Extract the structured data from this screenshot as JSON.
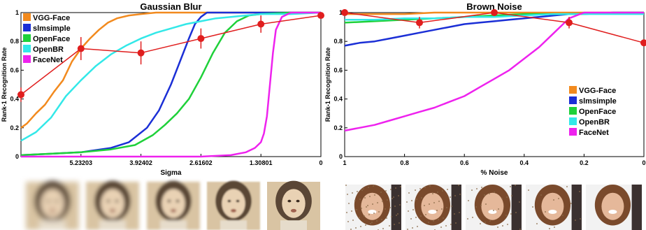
{
  "chart_data": [
    {
      "type": "line",
      "title": "Gaussian Blur",
      "xlabel": "Sigma",
      "ylabel": "Rank-1 Recognition Rate",
      "xlim": [
        0,
        1
      ],
      "ylim": [
        0,
        1
      ],
      "x_reversed": true,
      "xticks": [
        {
          "v": 0.2,
          "label": "5.23203"
        },
        {
          "v": 0.4,
          "label": "3.92402"
        },
        {
          "v": 0.6,
          "label": "2.61602"
        },
        {
          "v": 0.8,
          "label": "1.30801"
        },
        {
          "v": 1.0,
          "label": "0"
        }
      ],
      "yticks": [
        0,
        0.2,
        0.4,
        0.6,
        0.8,
        1
      ],
      "legend_position": "top-left",
      "series": [
        {
          "name": "VGG-Face",
          "color": "#f28a1e",
          "x": [
            0,
            0.02,
            0.05,
            0.08,
            0.11,
            0.14,
            0.17,
            0.2,
            0.23,
            0.26,
            0.29,
            0.32,
            0.36,
            0.4,
            0.45,
            0.5,
            0.6,
            0.8,
            1.0
          ],
          "y": [
            0.2,
            0.23,
            0.3,
            0.36,
            0.45,
            0.53,
            0.66,
            0.75,
            0.82,
            0.88,
            0.93,
            0.96,
            0.98,
            0.99,
            1,
            1,
            1,
            1,
            1
          ]
        },
        {
          "name": "slmsimple",
          "color": "#1b2fd6",
          "x": [
            0,
            0.1,
            0.2,
            0.3,
            0.36,
            0.42,
            0.46,
            0.5,
            0.53,
            0.56,
            0.58,
            0.6,
            0.62,
            0.65,
            0.8,
            1.0
          ],
          "y": [
            0.01,
            0.02,
            0.03,
            0.06,
            0.1,
            0.2,
            0.32,
            0.5,
            0.66,
            0.82,
            0.92,
            0.97,
            1,
            1,
            1,
            1
          ]
        },
        {
          "name": "OpenFace",
          "color": "#1fd13a",
          "x": [
            0,
            0.1,
            0.2,
            0.3,
            0.38,
            0.44,
            0.48,
            0.52,
            0.56,
            0.6,
            0.64,
            0.68,
            0.72,
            0.76,
            0.8,
            0.9,
            1.0
          ],
          "y": [
            0.01,
            0.02,
            0.03,
            0.05,
            0.08,
            0.15,
            0.22,
            0.3,
            0.4,
            0.55,
            0.72,
            0.86,
            0.94,
            0.98,
            0.99,
            1,
            1
          ]
        },
        {
          "name": "OpenBR",
          "color": "#33e8e8",
          "x": [
            0,
            0.05,
            0.1,
            0.15,
            0.2,
            0.25,
            0.3,
            0.35,
            0.4,
            0.45,
            0.5,
            0.55,
            0.6,
            0.65,
            0.7,
            0.75,
            0.8,
            0.9,
            1.0
          ],
          "y": [
            0.11,
            0.17,
            0.27,
            0.42,
            0.53,
            0.63,
            0.71,
            0.77,
            0.82,
            0.86,
            0.89,
            0.92,
            0.94,
            0.96,
            0.97,
            0.98,
            0.99,
            0.99,
            1
          ]
        },
        {
          "name": "FaceNet",
          "color": "#ee22ee",
          "x": [
            0,
            0.2,
            0.4,
            0.6,
            0.7,
            0.75,
            0.78,
            0.8,
            0.81,
            0.82,
            0.83,
            0.84,
            0.85,
            0.87,
            0.9,
            1.0
          ],
          "y": [
            0,
            0,
            0,
            0,
            0.01,
            0.03,
            0.06,
            0.1,
            0.16,
            0.28,
            0.5,
            0.72,
            0.88,
            0.97,
            1,
            1
          ]
        },
        {
          "name": "",
          "color": "#e01e1e",
          "markers": true,
          "errorbars": true,
          "x": [
            0,
            0.2,
            0.4,
            0.6,
            0.8,
            1.0
          ],
          "y": [
            0.43,
            0.75,
            0.72,
            0.82,
            0.92,
            0.98
          ],
          "err": [
            0.05,
            0.08,
            0.08,
            0.07,
            0.06,
            0.02
          ]
        }
      ]
    },
    {
      "type": "line",
      "title": "Brown Noise",
      "xlabel": "% Noise",
      "ylabel": "Rank-1 Recognition Rate",
      "xlim": [
        1,
        0
      ],
      "ylim": [
        0,
        1
      ],
      "x_reversed": true,
      "xticks": [
        {
          "v": 1,
          "label": "1"
        },
        {
          "v": 0.8,
          "label": "0.8"
        },
        {
          "v": 0.6,
          "label": "0.6"
        },
        {
          "v": 0.4,
          "label": "0.4"
        },
        {
          "v": 0.2,
          "label": "0.2"
        },
        {
          "v": 0,
          "label": "0"
        }
      ],
      "yticks": [
        0,
        0.2,
        0.4,
        0.6,
        0.8,
        1
      ],
      "legend_position": "bottom-right",
      "series": [
        {
          "name": "VGG-Face",
          "color": "#f28a1e",
          "x": [
            1,
            0.9,
            0.8,
            0.7,
            0.6,
            0.5,
            0.4,
            0.3,
            0.2,
            0.1,
            0
          ],
          "y": [
            0.99,
            0.99,
            0.99,
            1,
            1,
            1,
            1,
            1,
            1,
            1,
            1
          ]
        },
        {
          "name": "slmsimple",
          "color": "#1b2fd6",
          "x": [
            1,
            0.95,
            0.9,
            0.85,
            0.8,
            0.75,
            0.7,
            0.65,
            0.6,
            0.55,
            0.5,
            0.45,
            0.4,
            0.35,
            0.3,
            0.25,
            0.2,
            0.1,
            0
          ],
          "y": [
            0.77,
            0.79,
            0.8,
            0.82,
            0.84,
            0.86,
            0.88,
            0.9,
            0.92,
            0.93,
            0.94,
            0.95,
            0.96,
            0.97,
            0.98,
            0.99,
            0.99,
            1,
            1
          ]
        },
        {
          "name": "OpenFace",
          "color": "#1fd13a",
          "x": [
            1,
            0.9,
            0.8,
            0.7,
            0.6,
            0.5,
            0.4,
            0.3,
            0.2,
            0.1,
            0
          ],
          "y": [
            0.93,
            0.94,
            0.95,
            0.96,
            0.97,
            0.98,
            0.99,
            0.99,
            0.99,
            1,
            1
          ]
        },
        {
          "name": "OpenBR",
          "color": "#33e8e8",
          "x": [
            1,
            0.9,
            0.8,
            0.7,
            0.6,
            0.5,
            0.4,
            0.3,
            0.2,
            0.1,
            0
          ],
          "y": [
            0.95,
            0.95,
            0.96,
            0.96,
            0.97,
            0.97,
            0.98,
            0.99,
            0.99,
            0.99,
            0.99
          ]
        },
        {
          "name": "FaceNet",
          "color": "#ee22ee",
          "x": [
            1,
            0.95,
            0.9,
            0.85,
            0.8,
            0.75,
            0.7,
            0.65,
            0.6,
            0.55,
            0.5,
            0.45,
            0.4,
            0.35,
            0.3,
            0.27,
            0.25,
            0.2,
            0.1,
            0
          ],
          "y": [
            0.18,
            0.2,
            0.22,
            0.25,
            0.28,
            0.31,
            0.34,
            0.38,
            0.42,
            0.48,
            0.54,
            0.6,
            0.68,
            0.76,
            0.86,
            0.92,
            0.96,
            1,
            1,
            1
          ]
        },
        {
          "name": "",
          "color": "#e01e1e",
          "markers": true,
          "errorbars": true,
          "x": [
            1,
            0.75,
            0.5,
            0.25,
            0
          ],
          "y": [
            1,
            0.93,
            1,
            0.93,
            0.79
          ],
          "err": [
            0.01,
            0.04,
            0.01,
            0.04,
            0.01
          ]
        }
      ]
    }
  ],
  "thumbnails": {
    "blur": {
      "count": 5,
      "blur_levels": [
        "high",
        "medium-high",
        "medium",
        "low",
        "none"
      ]
    },
    "noise": {
      "count": 5,
      "noise_levels": [
        "high",
        "medium-high",
        "medium",
        "low",
        "none"
      ]
    }
  }
}
